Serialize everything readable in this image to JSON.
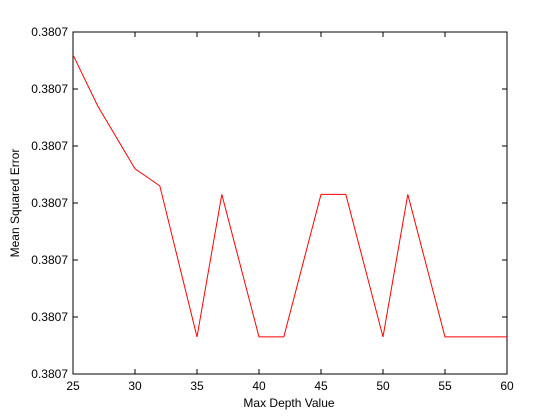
{
  "chart_data": {
    "type": "line",
    "xlabel": "Max Depth Value",
    "ylabel": "Mean Squared Error",
    "xlim": [
      25,
      60
    ],
    "ylim": [
      0,
      6
    ],
    "grid": false,
    "legend": "none",
    "x_ticks": [
      {
        "value": 25,
        "label": "25"
      },
      {
        "value": 30,
        "label": "30"
      },
      {
        "value": 35,
        "label": "35"
      },
      {
        "value": 40,
        "label": "40"
      },
      {
        "value": 45,
        "label": "45"
      },
      {
        "value": 50,
        "label": "50"
      },
      {
        "value": 55,
        "label": "55"
      },
      {
        "value": 60,
        "label": "60"
      }
    ],
    "y_ticks": [
      {
        "value": 0,
        "label": "0.3807"
      },
      {
        "value": 1,
        "label": "0.3807"
      },
      {
        "value": 2,
        "label": "0.3807"
      },
      {
        "value": 3,
        "label": "0.3807"
      },
      {
        "value": 4,
        "label": "0.3807"
      },
      {
        "value": 5,
        "label": "0.3807"
      },
      {
        "value": 6,
        "label": "0.3807"
      }
    ],
    "series": [
      {
        "color": "#ff0000",
        "x": [
          25,
          27,
          30,
          32,
          35,
          37,
          40,
          42,
          45,
          47,
          50,
          52,
          55,
          57,
          60
        ],
        "y": [
          5.6,
          4.7,
          3.6,
          3.3,
          0.65,
          3.15,
          0.65,
          0.65,
          3.15,
          3.15,
          0.65,
          3.15,
          0.65,
          0.65,
          0.65
        ]
      }
    ]
  }
}
